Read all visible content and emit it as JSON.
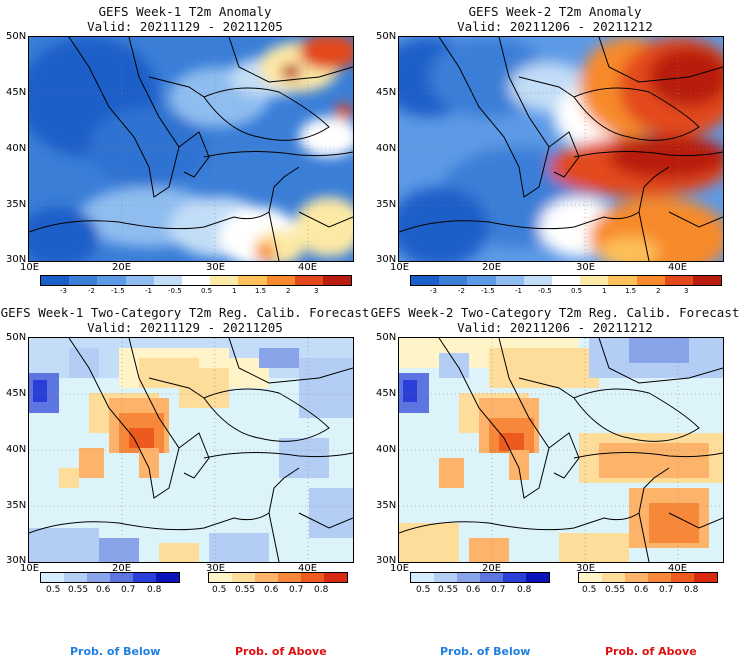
{
  "panels": [
    {
      "title": "GEFS Week-1 T2m Anomaly",
      "valid": "Valid: 20211129 - 20211205",
      "lat_labels": [
        "50N",
        "45N",
        "40N",
        "35N",
        "30N"
      ],
      "lon_labels": [
        "10E",
        "20E",
        "30E",
        "40E"
      ],
      "legend_ticks": [
        "-3",
        "-2",
        "-1.5",
        "-1",
        "-0.5",
        "0.5",
        "1",
        "1.5",
        "2",
        "3"
      ]
    },
    {
      "title": "GEFS Week-2 T2m Anomaly",
      "valid": "Valid: 20211206 - 20211212",
      "lat_labels": [
        "50N",
        "45N",
        "40N",
        "35N",
        "30N"
      ],
      "lon_labels": [
        "10E",
        "20E",
        "30E",
        "40E"
      ],
      "legend_ticks": [
        "-3",
        "-2",
        "-1.5",
        "-1",
        "-0.5",
        "0.5",
        "1",
        "1.5",
        "2",
        "3"
      ]
    },
    {
      "title": "GEFS Week-1 Two-Category T2m Reg. Calib. Forecast",
      "valid": "Valid: 20211129 - 20211205",
      "lat_labels": [
        "50N",
        "45N",
        "40N",
        "35N",
        "30N"
      ],
      "lon_labels": [
        "10E",
        "20E",
        "30E",
        "40E"
      ],
      "below_ticks": [
        "0.5",
        "0.55",
        "0.6",
        "0.7",
        "0.8"
      ],
      "above_ticks": [
        "0.5",
        "0.55",
        "0.6",
        "0.7",
        "0.8"
      ]
    },
    {
      "title": "GEFS Week-2 Two-Category T2m Reg. Calib. Forecast",
      "valid": "Valid: 20211206 - 20211212",
      "lat_labels": [
        "50N",
        "45N",
        "40N",
        "35N",
        "30N"
      ],
      "lon_labels": [
        "10E",
        "20E",
        "30E",
        "40E"
      ],
      "below_ticks": [
        "0.5",
        "0.55",
        "0.6",
        "0.7",
        "0.8"
      ],
      "above_ticks": [
        "0.5",
        "0.55",
        "0.6",
        "0.7",
        "0.8"
      ]
    }
  ],
  "footer": {
    "below_left": "Prob. of Below",
    "above_left": "Prob. of Above",
    "below_right": "Prob. of Below",
    "above_right": "Prob. of Above"
  },
  "colors": {
    "anomaly_scale": [
      "#1a5fc8",
      "#3a7ed8",
      "#5d9ae6",
      "#8fbdf0",
      "#c2ddf7",
      "#ffffff",
      "#fde9a6",
      "#fdc05a",
      "#f78a2c",
      "#e3481c",
      "#b81e10"
    ],
    "below_scale": [
      "#d6ecff",
      "#b3cdf5",
      "#8aa4ea",
      "#5d75e0",
      "#2a3fd8",
      "#0a14b8"
    ],
    "above_scale": [
      "#fff4c8",
      "#fedd9a",
      "#fdb46a",
      "#f7883a",
      "#ec5a1e",
      "#d82a10"
    ],
    "probability_bg": "#ddf3fa",
    "below_label": "#1f7fe0",
    "above_label": "#e01010"
  }
}
